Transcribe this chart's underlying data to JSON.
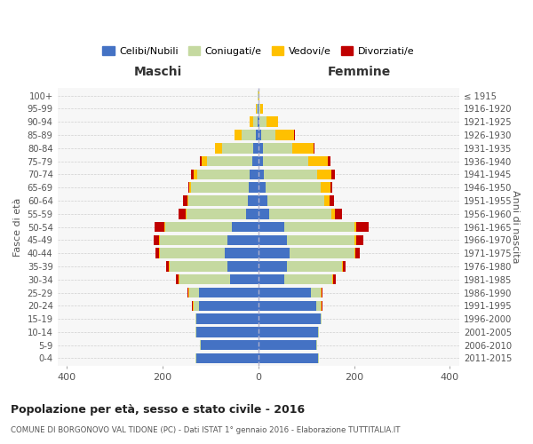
{
  "age_groups": [
    "0-4",
    "5-9",
    "10-14",
    "15-19",
    "20-24",
    "25-29",
    "30-34",
    "35-39",
    "40-44",
    "45-49",
    "50-54",
    "55-59",
    "60-64",
    "65-69",
    "70-74",
    "75-79",
    "80-84",
    "85-89",
    "90-94",
    "95-99",
    "100+"
  ],
  "birth_years": [
    "2011-2015",
    "2006-2010",
    "2001-2005",
    "1996-2000",
    "1991-1995",
    "1986-1990",
    "1981-1985",
    "1976-1980",
    "1971-1975",
    "1966-1970",
    "1961-1965",
    "1956-1960",
    "1951-1955",
    "1946-1950",
    "1941-1945",
    "1936-1940",
    "1931-1935",
    "1926-1930",
    "1921-1925",
    "1916-1920",
    "≤ 1915"
  ],
  "males": {
    "celibi": [
      130,
      120,
      130,
      130,
      125,
      125,
      60,
      65,
      70,
      65,
      55,
      25,
      22,
      20,
      18,
      12,
      10,
      5,
      2,
      1,
      0
    ],
    "coniugati": [
      2,
      2,
      2,
      2,
      10,
      20,
      105,
      120,
      135,
      140,
      140,
      125,
      125,
      120,
      110,
      95,
      65,
      30,
      8,
      3,
      1
    ],
    "vedovi": [
      0,
      0,
      0,
      0,
      2,
      2,
      2,
      2,
      2,
      2,
      2,
      2,
      2,
      5,
      8,
      12,
      15,
      15,
      8,
      1,
      0
    ],
    "divorziati": [
      0,
      0,
      0,
      0,
      2,
      2,
      5,
      5,
      8,
      12,
      20,
      15,
      8,
      2,
      5,
      4,
      0,
      0,
      0,
      0,
      0
    ]
  },
  "females": {
    "nubili": [
      125,
      120,
      125,
      130,
      120,
      110,
      55,
      60,
      65,
      60,
      55,
      22,
      18,
      15,
      12,
      10,
      10,
      5,
      2,
      1,
      0
    ],
    "coniugate": [
      2,
      2,
      2,
      2,
      10,
      20,
      100,
      115,
      135,
      140,
      145,
      130,
      120,
      115,
      110,
      95,
      60,
      30,
      15,
      3,
      1
    ],
    "vedove": [
      0,
      0,
      0,
      0,
      2,
      2,
      2,
      2,
      2,
      5,
      5,
      8,
      10,
      20,
      30,
      40,
      45,
      40,
      25,
      5,
      1
    ],
    "divorziate": [
      0,
      0,
      0,
      0,
      2,
      2,
      5,
      5,
      10,
      15,
      25,
      15,
      10,
      5,
      8,
      5,
      2,
      2,
      0,
      0,
      0
    ]
  },
  "colors": {
    "celibi": "#4472c4",
    "coniugati": "#c5d9a0",
    "vedovi": "#ffc000",
    "divorziati": "#c00000"
  },
  "legend_labels": [
    "Celibi/Nubili",
    "Coniugati/e",
    "Vedovi/e",
    "Divorziati/e"
  ],
  "title": "Popolazione per età, sesso e stato civile - 2016",
  "subtitle": "COMUNE DI BORGONOVO VAL TIDONE (PC) - Dati ISTAT 1° gennaio 2016 - Elaborazione TUTTITALIA.IT",
  "label_maschi": "Maschi",
  "label_femmine": "Femmine",
  "ylabel_left": "Fasce di età",
  "ylabel_right": "Anni di nascita",
  "xlim": 420,
  "bg_color": "#ffffff",
  "plot_bg": "#f7f7f7",
  "grid_color": "#d0d0d0"
}
